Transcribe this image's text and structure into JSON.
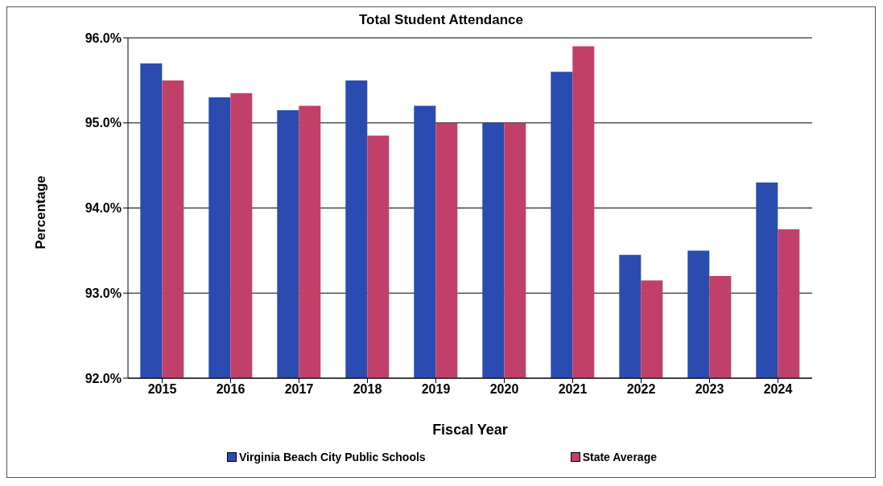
{
  "chart_data": {
    "type": "bar",
    "title": "Total Student Attendance",
    "xlabel": "Fiscal Year",
    "ylabel": "Percentage",
    "categories": [
      "2015",
      "2016",
      "2017",
      "2018",
      "2019",
      "2020",
      "2021",
      "2022",
      "2023",
      "2024"
    ],
    "series": [
      {
        "name": "Virginia Beach City Public Schools",
        "color": "#2a4bb0",
        "values": [
          95.7,
          95.3,
          95.15,
          95.5,
          95.2,
          95.0,
          95.6,
          93.45,
          93.5,
          94.3
        ]
      },
      {
        "name": "State Average",
        "color": "#c0406a",
        "values": [
          95.5,
          95.35,
          95.2,
          94.85,
          95.0,
          95.0,
          95.9,
          93.15,
          93.2,
          93.75
        ]
      }
    ],
    "ylim": [
      92,
      96
    ],
    "yticks": [
      {
        "value": 92,
        "label": "92.0%"
      },
      {
        "value": 93,
        "label": "93.0%"
      },
      {
        "value": 94,
        "label": "94.0%"
      },
      {
        "value": 95,
        "label": "95.0%"
      },
      {
        "value": 96,
        "label": "96.0%"
      }
    ],
    "grid": "y",
    "legend": "bottom"
  }
}
